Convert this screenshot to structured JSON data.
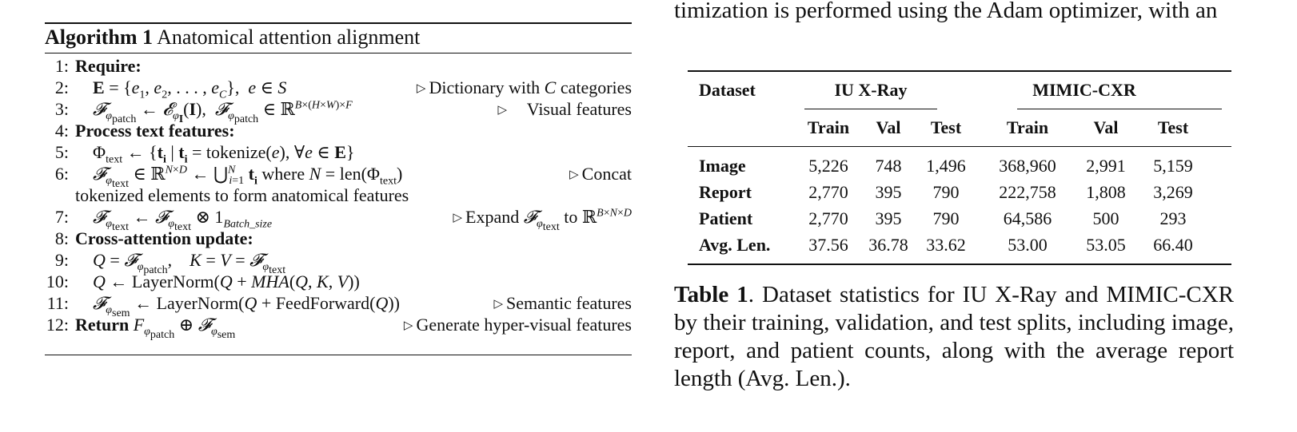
{
  "top_sentence": "timization is performed using the Adam optimizer, with an",
  "algorithm": {
    "title_bold": "Algorithm 1",
    "title_rest": "Anatomical attention alignment",
    "lines": [
      {
        "num": "1:",
        "text": "Require:"
      },
      {
        "num": "2:",
        "text": "E = {e1, e2, . . . , eC}, e ∈ S",
        "comment": "Dictionary with C categories"
      },
      {
        "num": "3:",
        "text": "Fφpatch ← EφI(I), Fφpatch ∈ R^{B×(H×W)×F}",
        "comment": "Visual features"
      },
      {
        "num": "4:",
        "text": "Process text features:"
      },
      {
        "num": "5:",
        "text": "Φtext ← {ti | ti = tokenize(e), ∀e ∈ E}"
      },
      {
        "num": "6:",
        "text": "Fφtext ∈ R^{N×D} ← ⋃ ti where N = len(Φtext)",
        "comment": "Concat",
        "continuation": "tokenized elements to form anatomical features"
      },
      {
        "num": "7:",
        "text": "Fφtext ← Fφtext ⊗ 1Batch_size",
        "comment": "Expand Fφtext to R^{B×N×D}"
      },
      {
        "num": "8:",
        "text": "Cross-attention update:"
      },
      {
        "num": "9:",
        "text": "Q = Fφpatch, K = V = Fφtext"
      },
      {
        "num": "10:",
        "text": "Q ← LayerNorm(Q + MHA(Q, K, V))"
      },
      {
        "num": "11:",
        "text": "Fφsem ← LayerNorm(Q + FeedForward(Q))",
        "comment": "Semantic features"
      },
      {
        "num": "12:",
        "text": "Return Fφpatch ⊕ Fφsem",
        "comment": "Generate hyper-visual features"
      }
    ]
  },
  "table": {
    "header_dataset": "Dataset",
    "groups": [
      "IU X-Ray",
      "MIMIC-CXR"
    ],
    "subheaders": [
      "Train",
      "Val",
      "Test",
      "Train",
      "Val",
      "Test"
    ],
    "rows": [
      {
        "label": "Image",
        "values": [
          "5,226",
          "748",
          "1,496",
          "368,960",
          "2,991",
          "5,159"
        ]
      },
      {
        "label": "Report",
        "values": [
          "2,770",
          "395",
          "790",
          "222,758",
          "1,808",
          "3,269"
        ]
      },
      {
        "label": "Patient",
        "values": [
          "2,770",
          "395",
          "790",
          "64,586",
          "500",
          "293"
        ]
      },
      {
        "label": "Avg. Len.",
        "values": [
          "37.56",
          "36.78",
          "33.62",
          "53.00",
          "53.05",
          "66.40"
        ]
      }
    ]
  },
  "caption": {
    "label": "Table 1",
    "text": ". Dataset statistics for IU X-Ray and MIMIC-CXR by their training, validation, and test splits, including image, report, and patient counts, along with the average report length (Avg. Len.)."
  }
}
